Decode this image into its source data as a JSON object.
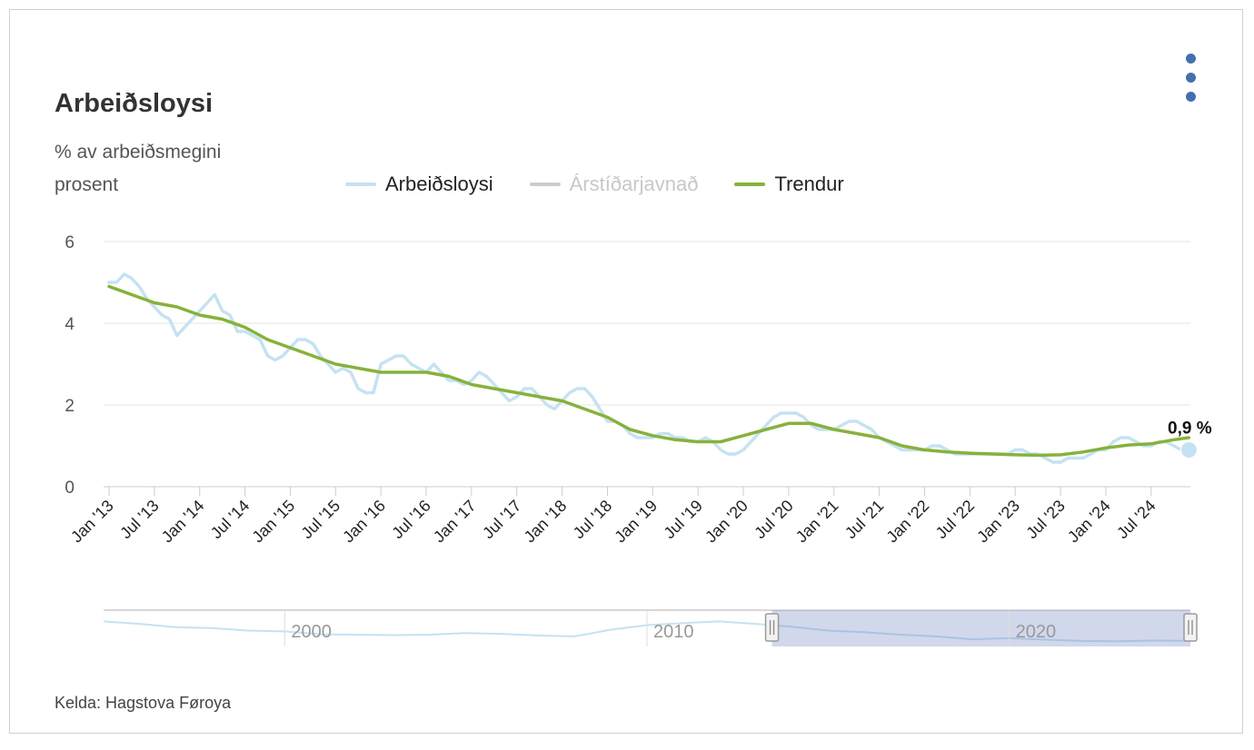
{
  "header": {
    "title": "Arbeiðsloysi",
    "subtitle_line1": "% av arbeiðsmegini",
    "subtitle_line2": "prosent"
  },
  "menu": {
    "icon": "menu-dots-vertical-icon"
  },
  "legend": [
    {
      "name": "Arbeiðsloysi",
      "color": "#c5e2f2",
      "visible": true
    },
    {
      "name": "Árstíðarjavnað",
      "color": "#cccccc",
      "visible": false
    },
    {
      "name": "Trendur",
      "color": "#86b23b",
      "visible": true
    }
  ],
  "source": "Kelda: Hagstova Føroya",
  "last_value_label": "0,9 %",
  "chart_data": {
    "type": "line",
    "ylim": [
      0,
      6
    ],
    "yticks": [
      "0",
      "2",
      "4",
      "6"
    ],
    "x_start": "2013-01",
    "x_end": "2024-12",
    "xticks": [
      "Jan '13",
      "Jul '13",
      "Jan '14",
      "Jul '14",
      "Jan '15",
      "Jul '15",
      "Jan '16",
      "Jul '16",
      "Jan '17",
      "Jul '17",
      "Jan '18",
      "Jul '18",
      "Jan '19",
      "Jul '19",
      "Jan '20",
      "Jul '20",
      "Jan '21",
      "Jul '21",
      "Jan '22",
      "Jul '22",
      "Jan '23",
      "Jul '23",
      "Jan '24",
      "Jul '24"
    ],
    "series": [
      {
        "name": "Arbeiðsloysi",
        "color": "#c5e2f2",
        "x": [
          "2013-01",
          "2013-02",
          "2013-03",
          "2013-04",
          "2013-05",
          "2013-06",
          "2013-07",
          "2013-08",
          "2013-09",
          "2013-10",
          "2013-11",
          "2013-12",
          "2014-01",
          "2014-02",
          "2014-03",
          "2014-04",
          "2014-05",
          "2014-06",
          "2014-07",
          "2014-08",
          "2014-09",
          "2014-10",
          "2014-11",
          "2014-12",
          "2015-01",
          "2015-02",
          "2015-03",
          "2015-04",
          "2015-05",
          "2015-06",
          "2015-07",
          "2015-08",
          "2015-09",
          "2015-10",
          "2015-11",
          "2015-12",
          "2016-01",
          "2016-02",
          "2016-03",
          "2016-04",
          "2016-05",
          "2016-06",
          "2016-07",
          "2016-08",
          "2016-09",
          "2016-10",
          "2016-11",
          "2016-12",
          "2017-01",
          "2017-02",
          "2017-03",
          "2017-04",
          "2017-05",
          "2017-06",
          "2017-07",
          "2017-08",
          "2017-09",
          "2017-10",
          "2017-11",
          "2017-12",
          "2018-01",
          "2018-02",
          "2018-03",
          "2018-04",
          "2018-05",
          "2018-06",
          "2018-07",
          "2018-08",
          "2018-09",
          "2018-10",
          "2018-11",
          "2018-12",
          "2019-01",
          "2019-02",
          "2019-03",
          "2019-04",
          "2019-05",
          "2019-06",
          "2019-07",
          "2019-08",
          "2019-09",
          "2019-10",
          "2019-11",
          "2019-12",
          "2020-01",
          "2020-02",
          "2020-03",
          "2020-04",
          "2020-05",
          "2020-06",
          "2020-07",
          "2020-08",
          "2020-09",
          "2020-10",
          "2020-11",
          "2020-12",
          "2021-01",
          "2021-02",
          "2021-03",
          "2021-04",
          "2021-05",
          "2021-06",
          "2021-07",
          "2021-08",
          "2021-09",
          "2021-10",
          "2021-11",
          "2021-12",
          "2022-01",
          "2022-02",
          "2022-03",
          "2022-04",
          "2022-05",
          "2022-06",
          "2022-07",
          "2022-08",
          "2022-09",
          "2022-10",
          "2022-11",
          "2022-12",
          "2023-01",
          "2023-02",
          "2023-03",
          "2023-04",
          "2023-05",
          "2023-06",
          "2023-07",
          "2023-08",
          "2023-09",
          "2023-10",
          "2023-11",
          "2023-12",
          "2024-01",
          "2024-02",
          "2024-03",
          "2024-04",
          "2024-05",
          "2024-06",
          "2024-07",
          "2024-08",
          "2024-09",
          "2024-10",
          "2024-11",
          "2024-12"
        ],
        "y": [
          5.0,
          5.0,
          5.2,
          5.1,
          4.9,
          4.6,
          4.4,
          4.2,
          4.1,
          3.7,
          3.9,
          4.1,
          4.3,
          4.5,
          4.7,
          4.3,
          4.2,
          3.8,
          3.8,
          3.7,
          3.6,
          3.2,
          3.1,
          3.2,
          3.4,
          3.6,
          3.6,
          3.5,
          3.2,
          3.0,
          2.8,
          2.9,
          2.8,
          2.4,
          2.3,
          2.3,
          3.0,
          3.1,
          3.2,
          3.2,
          3.0,
          2.9,
          2.8,
          3.0,
          2.8,
          2.6,
          2.6,
          2.5,
          2.6,
          2.8,
          2.7,
          2.5,
          2.3,
          2.1,
          2.2,
          2.4,
          2.4,
          2.2,
          2.0,
          1.9,
          2.1,
          2.3,
          2.4,
          2.4,
          2.2,
          1.9,
          1.6,
          1.6,
          1.5,
          1.3,
          1.2,
          1.2,
          1.2,
          1.3,
          1.3,
          1.2,
          1.2,
          1.1,
          1.1,
          1.2,
          1.1,
          0.9,
          0.8,
          0.8,
          0.9,
          1.1,
          1.3,
          1.5,
          1.7,
          1.8,
          1.8,
          1.8,
          1.7,
          1.5,
          1.4,
          1.4,
          1.4,
          1.5,
          1.6,
          1.6,
          1.5,
          1.4,
          1.2,
          1.1,
          1.0,
          0.9,
          0.9,
          0.9,
          0.9,
          1.0,
          1.0,
          0.9,
          0.8,
          0.8,
          0.8,
          0.8,
          0.8,
          0.8,
          0.8,
          0.8,
          0.9,
          0.9,
          0.8,
          0.8,
          0.7,
          0.6,
          0.6,
          0.7,
          0.7,
          0.7,
          0.8,
          0.9,
          0.9,
          1.1,
          1.2,
          1.2,
          1.1,
          1.0,
          1.0,
          1.1,
          1.1,
          1.0,
          0.9,
          0.9
        ]
      },
      {
        "name": "Trendur",
        "color": "#86b23b",
        "x": [
          "2013-01",
          "2013-04",
          "2013-07",
          "2013-10",
          "2014-01",
          "2014-04",
          "2014-07",
          "2014-10",
          "2015-01",
          "2015-04",
          "2015-07",
          "2015-10",
          "2016-01",
          "2016-04",
          "2016-07",
          "2016-10",
          "2017-01",
          "2017-04",
          "2017-07",
          "2017-10",
          "2018-01",
          "2018-04",
          "2018-07",
          "2018-10",
          "2019-01",
          "2019-04",
          "2019-07",
          "2019-10",
          "2020-01",
          "2020-04",
          "2020-07",
          "2020-10",
          "2021-01",
          "2021-04",
          "2021-07",
          "2021-10",
          "2022-01",
          "2022-04",
          "2022-07",
          "2022-10",
          "2023-01",
          "2023-04",
          "2023-07",
          "2023-10",
          "2024-01",
          "2024-04",
          "2024-07",
          "2024-10",
          "2024-12"
        ],
        "y": [
          4.9,
          4.7,
          4.5,
          4.4,
          4.2,
          4.1,
          3.9,
          3.6,
          3.4,
          3.2,
          3.0,
          2.9,
          2.8,
          2.8,
          2.8,
          2.7,
          2.5,
          2.4,
          2.3,
          2.2,
          2.1,
          1.9,
          1.7,
          1.4,
          1.25,
          1.15,
          1.1,
          1.1,
          1.25,
          1.4,
          1.55,
          1.55,
          1.4,
          1.3,
          1.2,
          1.0,
          0.9,
          0.85,
          0.82,
          0.8,
          0.78,
          0.77,
          0.78,
          0.85,
          0.95,
          1.02,
          1.05,
          1.15,
          1.2
        ]
      }
    ],
    "navigator": {
      "ticks": [
        "2000",
        "2010",
        "2020"
      ],
      "range_start": "2013-01",
      "range_end": "2024-12"
    }
  }
}
